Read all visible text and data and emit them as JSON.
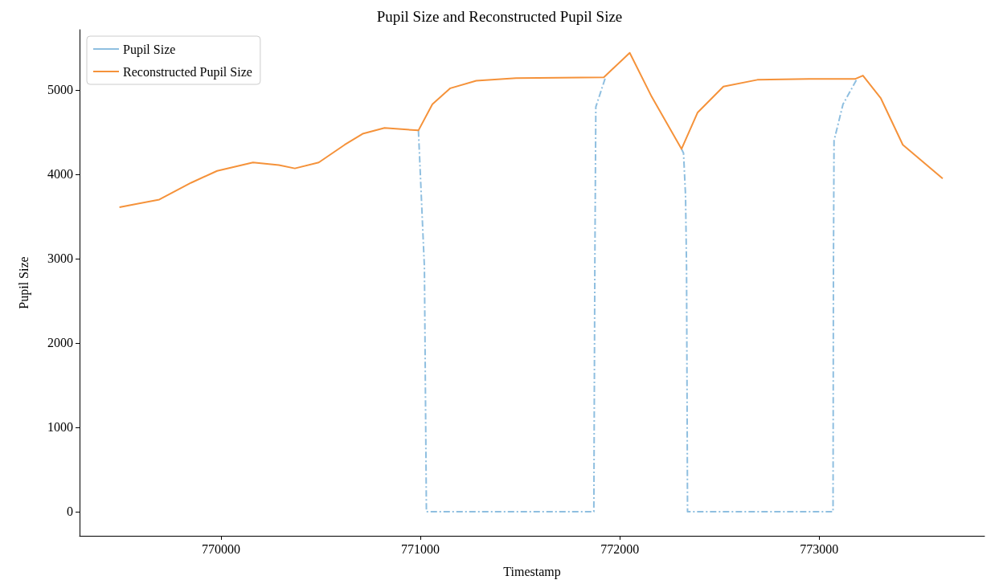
{
  "chart_data": {
    "type": "line",
    "title": "Pupil Size and Reconstructed Pupil Size",
    "xlabel": "Timestamp",
    "ylabel": "Pupil Size",
    "xlim": [
      769290,
      773830
    ],
    "xticks": [
      770000,
      771000,
      772000,
      773000
    ],
    "ylim": [
      -286,
      5714
    ],
    "yticks": [
      0,
      1000,
      2000,
      3000,
      4000,
      5000
    ],
    "grid": false,
    "legend": "top left",
    "marker": "none",
    "series": [
      {
        "name": "Pupil Size",
        "color": "#8fbfe0",
        "line_style": "dashed",
        "x": [
          770990,
          771020,
          771030,
          771450,
          771870,
          771875,
          771880,
          771930,
          772000,
          772310,
          772320,
          772330,
          772335,
          772340,
          772700,
          773070,
          773072,
          773075,
          773120,
          773190
        ],
        "values": [
          4520,
          2900,
          0,
          0,
          0,
          2900,
          4800,
          5160,
          null,
          4300,
          4250,
          3750,
          2900,
          0,
          0,
          0,
          2900,
          4400,
          4830,
          5130
        ]
      },
      {
        "name": "Reconstructed Pupil Size",
        "color": "#f5923a",
        "line_style": "solid",
        "x": [
          769490,
          769690,
          769850,
          769980,
          770160,
          770290,
          770370,
          770490,
          770620,
          770710,
          770820,
          770990,
          771060,
          771150,
          771280,
          771480,
          771920,
          772050,
          772160,
          772310,
          772390,
          772520,
          772690,
          772950,
          773180,
          773220,
          773310,
          773420,
          773620
        ],
        "values": [
          3610,
          3700,
          3900,
          4040,
          4140,
          4110,
          4070,
          4140,
          4350,
          4480,
          4550,
          4520,
          4830,
          5020,
          5110,
          5140,
          5150,
          5440,
          4920,
          4300,
          4730,
          5040,
          5120,
          5130,
          5130,
          5170,
          4900,
          4350,
          3950
        ]
      }
    ]
  }
}
